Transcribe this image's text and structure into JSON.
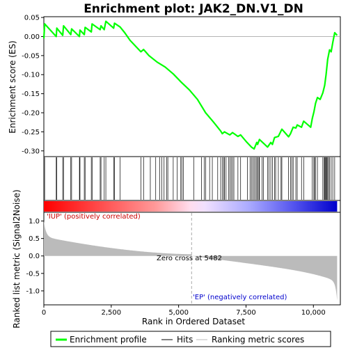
{
  "chart_data": {
    "type": "line",
    "title": "Enrichment plot: JAK2_DN.V1_DN",
    "es_panel": {
      "ylabel": "Enrichment score (ES)",
      "ylim": [
        -0.315,
        0.052
      ],
      "yticks": [
        0.05,
        0.0,
        -0.05,
        -0.1,
        -0.15,
        -0.2,
        -0.25,
        -0.3
      ],
      "ytick_labels": [
        "0.05",
        "0.00",
        "-0.05",
        "-0.10",
        "-0.15",
        "-0.20",
        "-0.25",
        "-0.30"
      ],
      "color": "#00ff00",
      "series": [
        {
          "rank": 0,
          "es": -0.005
        },
        {
          "rank": 30,
          "es": 0.033
        },
        {
          "rank": 460,
          "es": 0.0
        },
        {
          "rank": 480,
          "es": 0.022
        },
        {
          "rank": 700,
          "es": 0.003
        },
        {
          "rank": 730,
          "es": 0.028
        },
        {
          "rank": 1000,
          "es": 0.005
        },
        {
          "rank": 1030,
          "es": 0.02
        },
        {
          "rank": 1320,
          "es": 0.0
        },
        {
          "rank": 1340,
          "es": 0.017
        },
        {
          "rank": 1500,
          "es": 0.005
        },
        {
          "rank": 1530,
          "es": 0.024
        },
        {
          "rank": 1760,
          "es": 0.012
        },
        {
          "rank": 1790,
          "es": 0.033
        },
        {
          "rank": 2090,
          "es": 0.018
        },
        {
          "rank": 2120,
          "es": 0.028
        },
        {
          "rank": 2240,
          "es": 0.018
        },
        {
          "rank": 2300,
          "es": 0.04
        },
        {
          "rank": 2590,
          "es": 0.022
        },
        {
          "rank": 2620,
          "es": 0.035
        },
        {
          "rank": 2830,
          "es": 0.025
        },
        {
          "rank": 3000,
          "es": 0.01
        },
        {
          "rank": 3200,
          "es": -0.01
        },
        {
          "rank": 3400,
          "es": -0.025
        },
        {
          "rank": 3600,
          "es": -0.04
        },
        {
          "rank": 3700,
          "es": -0.034
        },
        {
          "rank": 3900,
          "es": -0.05
        },
        {
          "rank": 4200,
          "es": -0.067
        },
        {
          "rank": 4500,
          "es": -0.08
        },
        {
          "rank": 4800,
          "es": -0.098
        },
        {
          "rank": 5100,
          "es": -0.12
        },
        {
          "rank": 5400,
          "es": -0.14
        },
        {
          "rank": 5700,
          "es": -0.165
        },
        {
          "rank": 6000,
          "es": -0.2
        },
        {
          "rank": 6300,
          "es": -0.225
        },
        {
          "rank": 6560,
          "es": -0.248
        },
        {
          "rank": 6620,
          "es": -0.255
        },
        {
          "rank": 6700,
          "es": -0.25
        },
        {
          "rank": 6900,
          "es": -0.258
        },
        {
          "rank": 7000,
          "es": -0.252
        },
        {
          "rank": 7200,
          "es": -0.262
        },
        {
          "rank": 7300,
          "es": -0.258
        },
        {
          "rank": 7500,
          "es": -0.275
        },
        {
          "rank": 7700,
          "es": -0.29
        },
        {
          "rank": 7800,
          "es": -0.295
        },
        {
          "rank": 7900,
          "es": -0.278
        },
        {
          "rank": 7930,
          "es": -0.283
        },
        {
          "rank": 8000,
          "es": -0.27
        },
        {
          "rank": 8300,
          "es": -0.29
        },
        {
          "rank": 8420,
          "es": -0.278
        },
        {
          "rank": 8480,
          "es": -0.283
        },
        {
          "rank": 8560,
          "es": -0.265
        },
        {
          "rank": 8700,
          "es": -0.262
        },
        {
          "rank": 8830,
          "es": -0.243
        },
        {
          "rank": 9080,
          "es": -0.263
        },
        {
          "rank": 9150,
          "es": -0.255
        },
        {
          "rank": 9250,
          "es": -0.238
        },
        {
          "rank": 9350,
          "es": -0.24
        },
        {
          "rank": 9400,
          "es": -0.232
        },
        {
          "rank": 9560,
          "es": -0.238
        },
        {
          "rank": 9640,
          "es": -0.222
        },
        {
          "rank": 9900,
          "es": -0.238
        },
        {
          "rank": 9960,
          "es": -0.215
        },
        {
          "rank": 10020,
          "es": -0.198
        },
        {
          "rank": 10080,
          "es": -0.175
        },
        {
          "rank": 10150,
          "es": -0.16
        },
        {
          "rank": 10250,
          "es": -0.165
        },
        {
          "rank": 10350,
          "es": -0.148
        },
        {
          "rank": 10420,
          "es": -0.128
        },
        {
          "rank": 10470,
          "es": -0.1
        },
        {
          "rank": 10530,
          "es": -0.06
        },
        {
          "rank": 10600,
          "es": -0.035
        },
        {
          "rank": 10660,
          "es": -0.04
        },
        {
          "rank": 10720,
          "es": -0.015
        },
        {
          "rank": 10790,
          "es": 0.01
        },
        {
          "rank": 10880,
          "es": 0.003
        }
      ]
    },
    "hits": [
      30,
      460,
      480,
      700,
      730,
      1000,
      1030,
      1320,
      1340,
      1500,
      1530,
      1760,
      1790,
      2090,
      2120,
      2240,
      2300,
      2590,
      2620,
      2830,
      3600,
      3700,
      3950,
      4150,
      4300,
      4380,
      4460,
      4560,
      4600,
      4800,
      4950,
      5080,
      5120,
      5180,
      5560,
      5850,
      5950,
      6000,
      6150,
      6250,
      6450,
      6560,
      6620,
      6680,
      6700,
      6760,
      6850,
      6900,
      6950,
      7000,
      7050,
      7200,
      7300,
      7550,
      7650,
      7700,
      7750,
      7800,
      7850,
      7900,
      7930,
      7980,
      8000,
      8100,
      8150,
      8300,
      8350,
      8420,
      8480,
      8560,
      8600,
      8700,
      8800,
      8830,
      9080,
      9150,
      9200,
      9250,
      9350,
      9400,
      9560,
      9640,
      9960,
      10020,
      10040,
      10080,
      10150,
      10350,
      10400,
      10420,
      10450,
      10470,
      10500,
      10530,
      10560,
      10600,
      10660,
      10720,
      10790
    ],
    "metric_panel": {
      "ylabel": "Ranked list metric (Signal2Noise)",
      "ylim": [
        -1.4,
        1.25
      ],
      "yticks": [
        1.0,
        0.5,
        0.0,
        -0.5,
        -1.0
      ],
      "ytick_labels": [
        "1.0",
        "0.5",
        "0.0",
        "-0.5",
        "-1.0"
      ],
      "color": "#bbbbbb"
    },
    "x_axis": {
      "label": "Rank in Ordered Dataset",
      "xlim": [
        0,
        11000
      ],
      "ticks": [
        0,
        2500,
        5000,
        7500,
        10000
      ],
      "tick_labels": [
        "0",
        "2,500",
        "5,000",
        "7,500",
        "10,000"
      ],
      "n_genes": 10880
    },
    "zero_cross": {
      "rank": 5482,
      "text": "Zero cross at 5482"
    },
    "pos_label": {
      "text": "'IUP' (positively correlated)",
      "color": "#cc0000"
    },
    "neg_label": {
      "text": "'EP' (negatively correlated)",
      "color": "#0000cc"
    },
    "legend": [
      {
        "label": "Enrichment profile",
        "color": "#00ff00"
      },
      {
        "label": "Hits",
        "color": "#000000"
      },
      {
        "label": "Ranking metric scores",
        "color": "#bbbbbb"
      }
    ]
  }
}
